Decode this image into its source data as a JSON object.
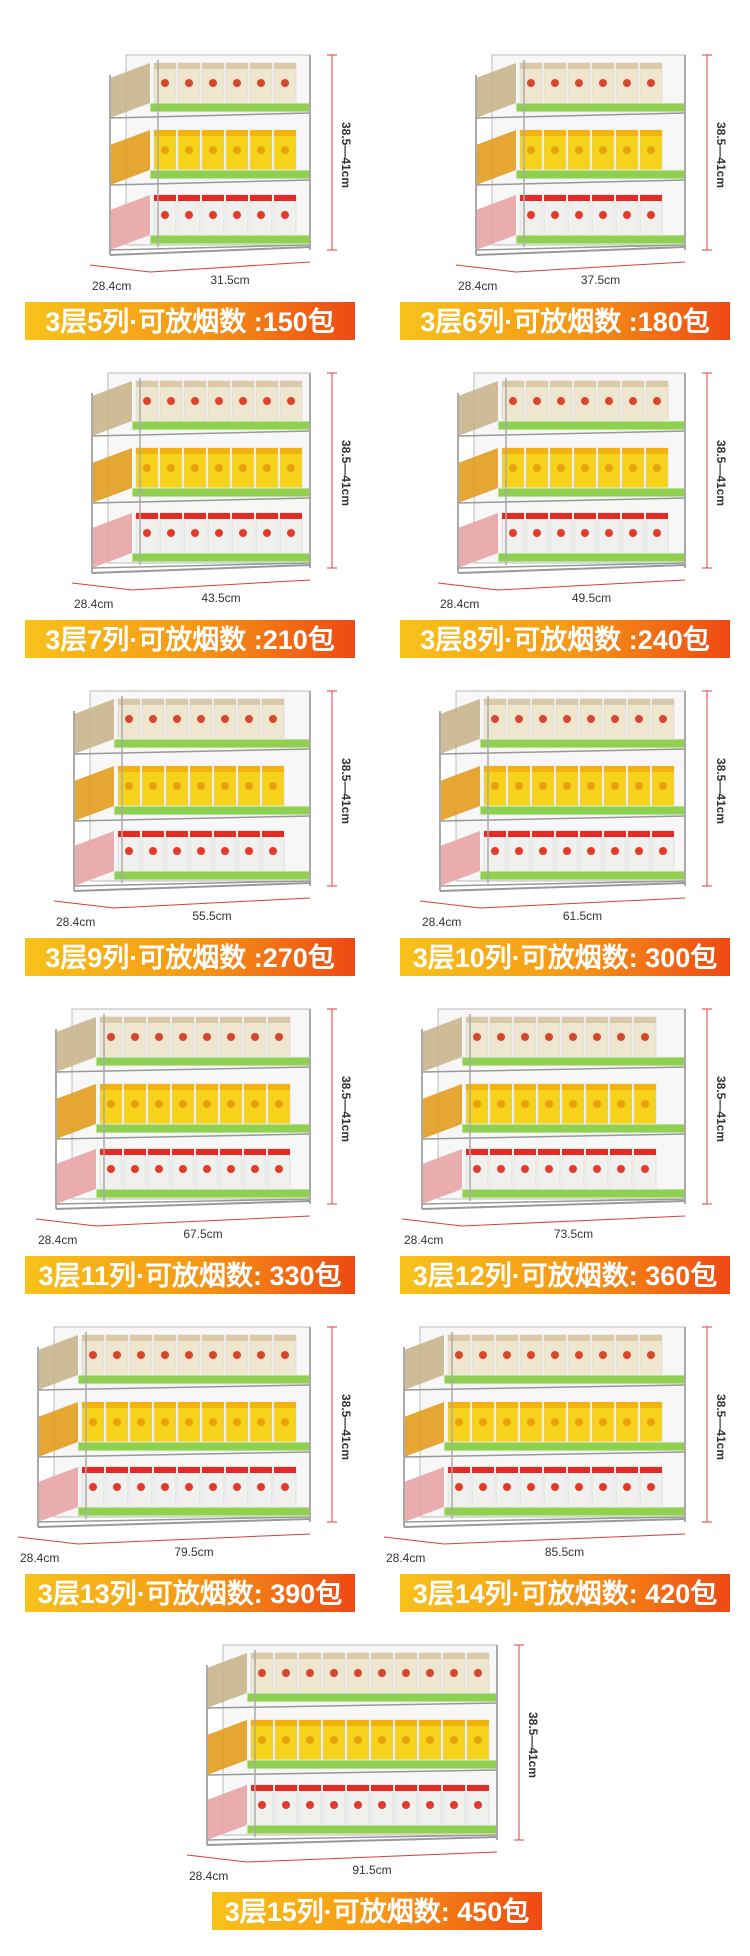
{
  "items": [
    {
      "depth": "28.4cm",
      "width": "31.5cm",
      "height": "38.5—41cm",
      "banner": "3层5列·可放烟数 :150包"
    },
    {
      "depth": "28.4cm",
      "width": "37.5cm",
      "height": "38.5—41cm",
      "banner": "3层6列·可放烟数 :180包"
    },
    {
      "depth": "28.4cm",
      "width": "43.5cm",
      "height": "38.5—41cm",
      "banner": "3层7列·可放烟数 :210包"
    },
    {
      "depth": "28.4cm",
      "width": "49.5cm",
      "height": "38.5—41cm",
      "banner": "3层8列·可放烟数 :240包"
    },
    {
      "depth": "28.4cm",
      "width": "55.5cm",
      "height": "38.5—41cm",
      "banner": "3层9列·可放烟数 :270包"
    },
    {
      "depth": "28.4cm",
      "width": "61.5cm",
      "height": "38.5—41cm",
      "banner": "3层10列·可放烟数: 300包"
    },
    {
      "depth": "28.4cm",
      "width": "67.5cm",
      "height": "38.5—41cm",
      "banner": "3层11列·可放烟数: 330包"
    },
    {
      "depth": "28.4cm",
      "width": "73.5cm",
      "height": "38.5—41cm",
      "banner": "3层12列·可放烟数: 360包"
    },
    {
      "depth": "28.4cm",
      "width": "79.5cm",
      "height": "38.5—41cm",
      "banner": "3层13列·可放烟数: 390包"
    },
    {
      "depth": "28.4cm",
      "width": "85.5cm",
      "height": "38.5—41cm",
      "banner": "3层14列·可放烟数: 420包"
    },
    {
      "depth": "28.4cm",
      "width": "91.5cm",
      "height": "38.5—41cm",
      "banner": "3层15列·可放烟数: 450包"
    }
  ]
}
